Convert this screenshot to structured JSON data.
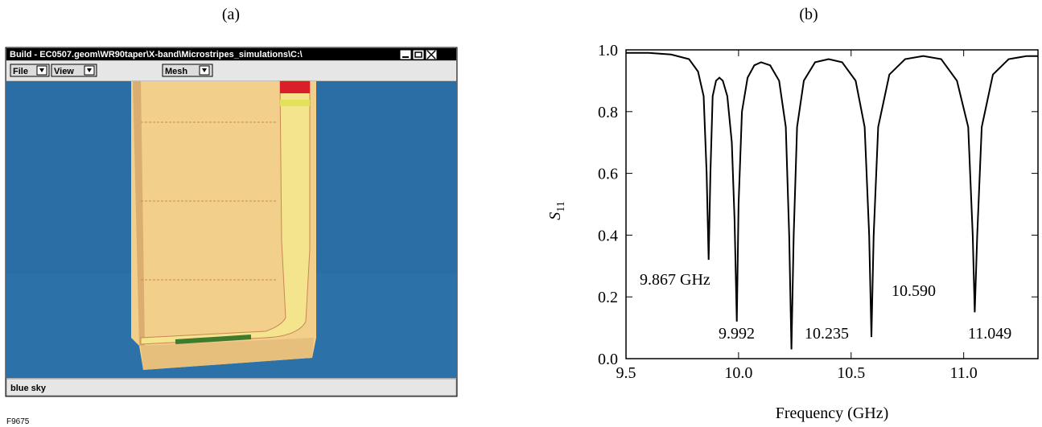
{
  "panel_labels": [
    "(a)",
    "(b)"
  ],
  "figure_id": "F9675",
  "window": {
    "title": "Build - EC0507.geom\\WR90taper\\X-band\\Microstripes_simulations\\C:\\",
    "menus": [
      "File",
      "View",
      "Mesh"
    ],
    "status": "blue sky"
  },
  "chart_data": {
    "type": "line",
    "xlabel": "Frequency (GHz)",
    "ylabel": "S",
    "ylabel_sub": "11",
    "x": [
      9.5,
      9.6,
      9.7,
      9.78,
      9.82,
      9.845,
      9.858,
      9.867,
      9.875,
      9.885,
      9.9,
      9.915,
      9.93,
      9.95,
      9.97,
      9.982,
      9.992,
      10.0,
      10.015,
      10.04,
      10.07,
      10.1,
      10.14,
      10.18,
      10.21,
      10.225,
      10.235,
      10.245,
      10.26,
      10.29,
      10.34,
      10.4,
      10.46,
      10.52,
      10.56,
      10.58,
      10.59,
      10.6,
      10.62,
      10.67,
      10.74,
      10.82,
      10.9,
      10.97,
      11.02,
      11.04,
      11.049,
      11.06,
      11.08,
      11.13,
      11.2,
      11.28,
      11.33
    ],
    "values": [
      0.99,
      0.99,
      0.985,
      0.97,
      0.93,
      0.85,
      0.6,
      0.32,
      0.6,
      0.85,
      0.9,
      0.91,
      0.9,
      0.85,
      0.7,
      0.45,
      0.12,
      0.5,
      0.8,
      0.91,
      0.95,
      0.96,
      0.95,
      0.9,
      0.75,
      0.4,
      0.03,
      0.4,
      0.75,
      0.9,
      0.96,
      0.97,
      0.96,
      0.9,
      0.75,
      0.4,
      0.07,
      0.4,
      0.75,
      0.92,
      0.97,
      0.98,
      0.97,
      0.9,
      0.75,
      0.4,
      0.15,
      0.4,
      0.75,
      0.92,
      0.97,
      0.98,
      0.98
    ],
    "color": "#000000",
    "xlim": [
      9.5,
      11.33
    ],
    "ylim": [
      0,
      1
    ],
    "xticks": [
      9.5,
      {
        "value": 10,
        "label": "10.0"
      },
      10.5,
      {
        "value": 11,
        "label": "11.0"
      }
    ],
    "yticks": [
      {
        "value": 0,
        "label": "0.0"
      },
      0.2,
      0.4,
      0.6,
      0.8,
      {
        "value": 1,
        "label": "1.0"
      }
    ],
    "annotations": [
      "9.867 GHz",
      "9.992",
      "10.235",
      "10.590",
      "11.049"
    ]
  }
}
